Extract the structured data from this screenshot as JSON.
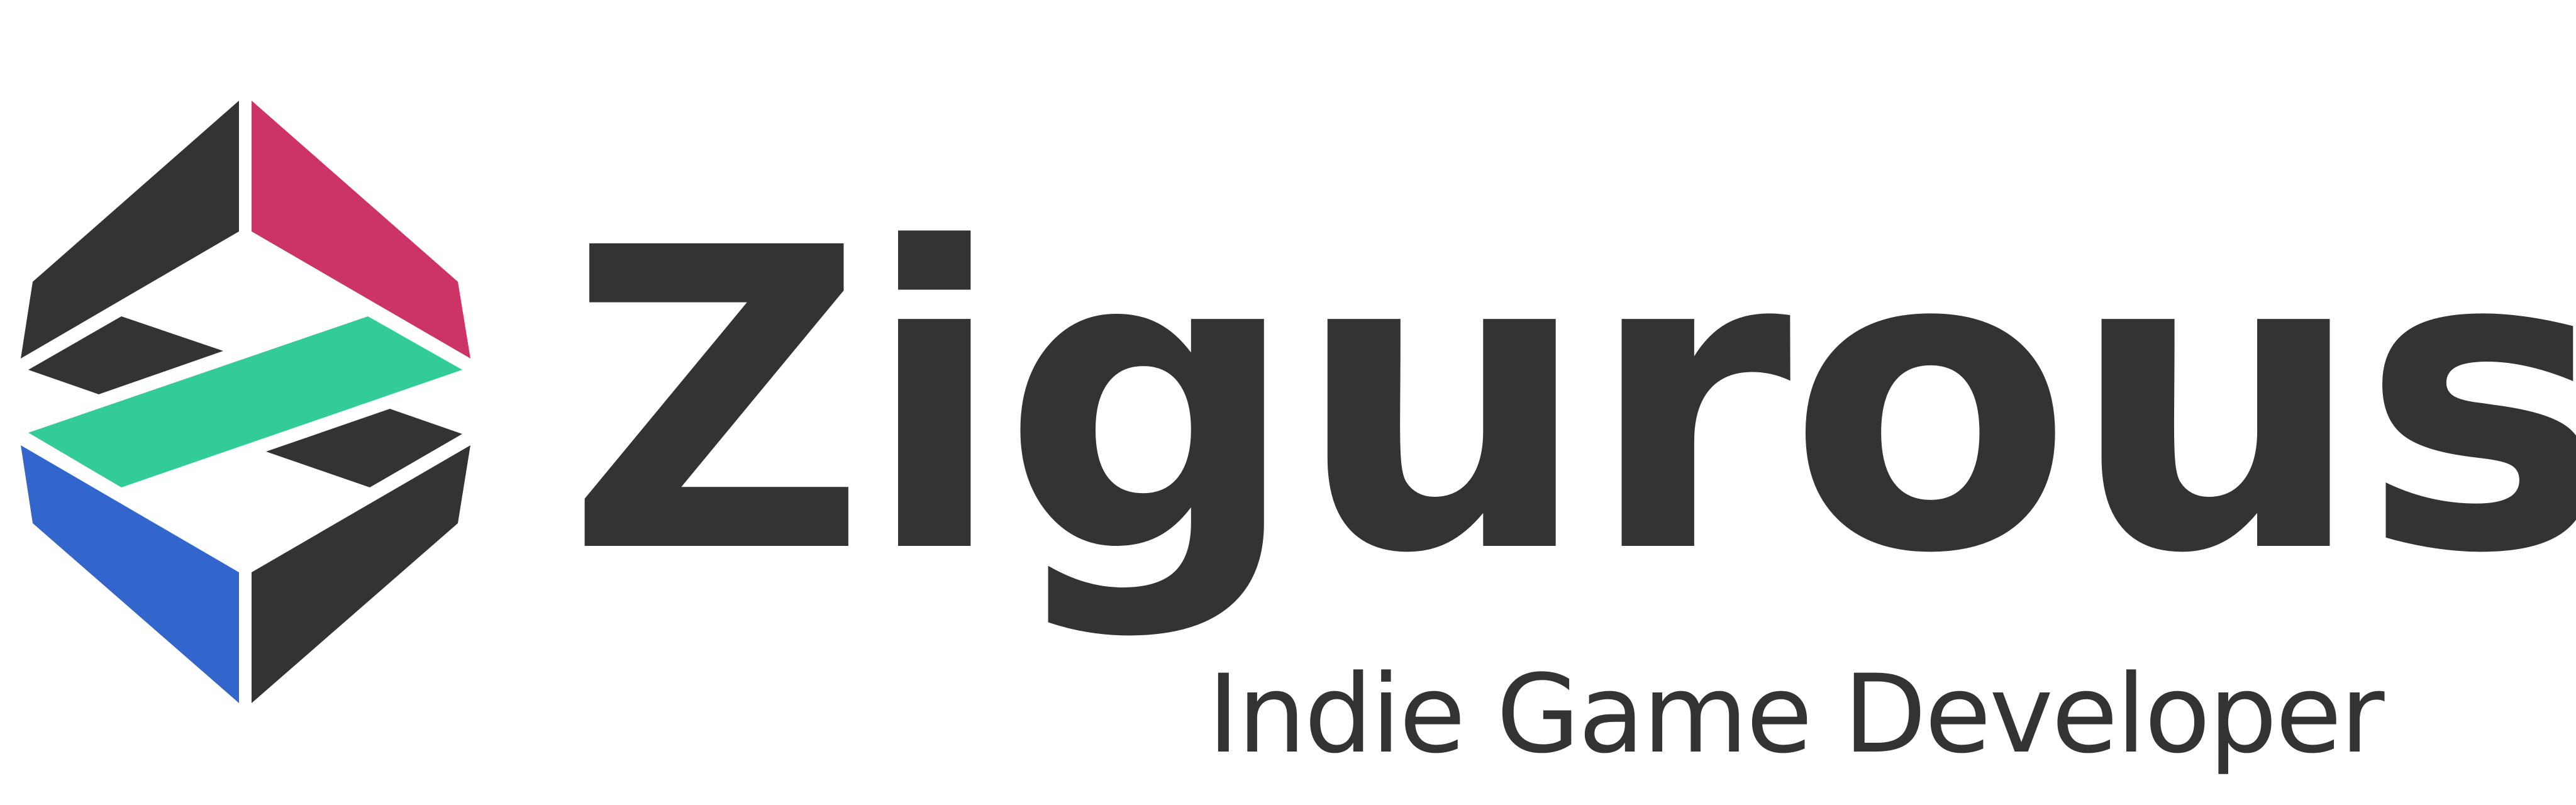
{
  "brand": {
    "name": "Zigurous",
    "tagline": "Indie Game Developer"
  },
  "colors": {
    "dark": "#333333",
    "pink": "#cc3366",
    "green": "#33cc99",
    "blue": "#3366cc",
    "background": "#ffffff"
  },
  "logo": {
    "icon": "zigurous-hexagon-logo-icon"
  }
}
